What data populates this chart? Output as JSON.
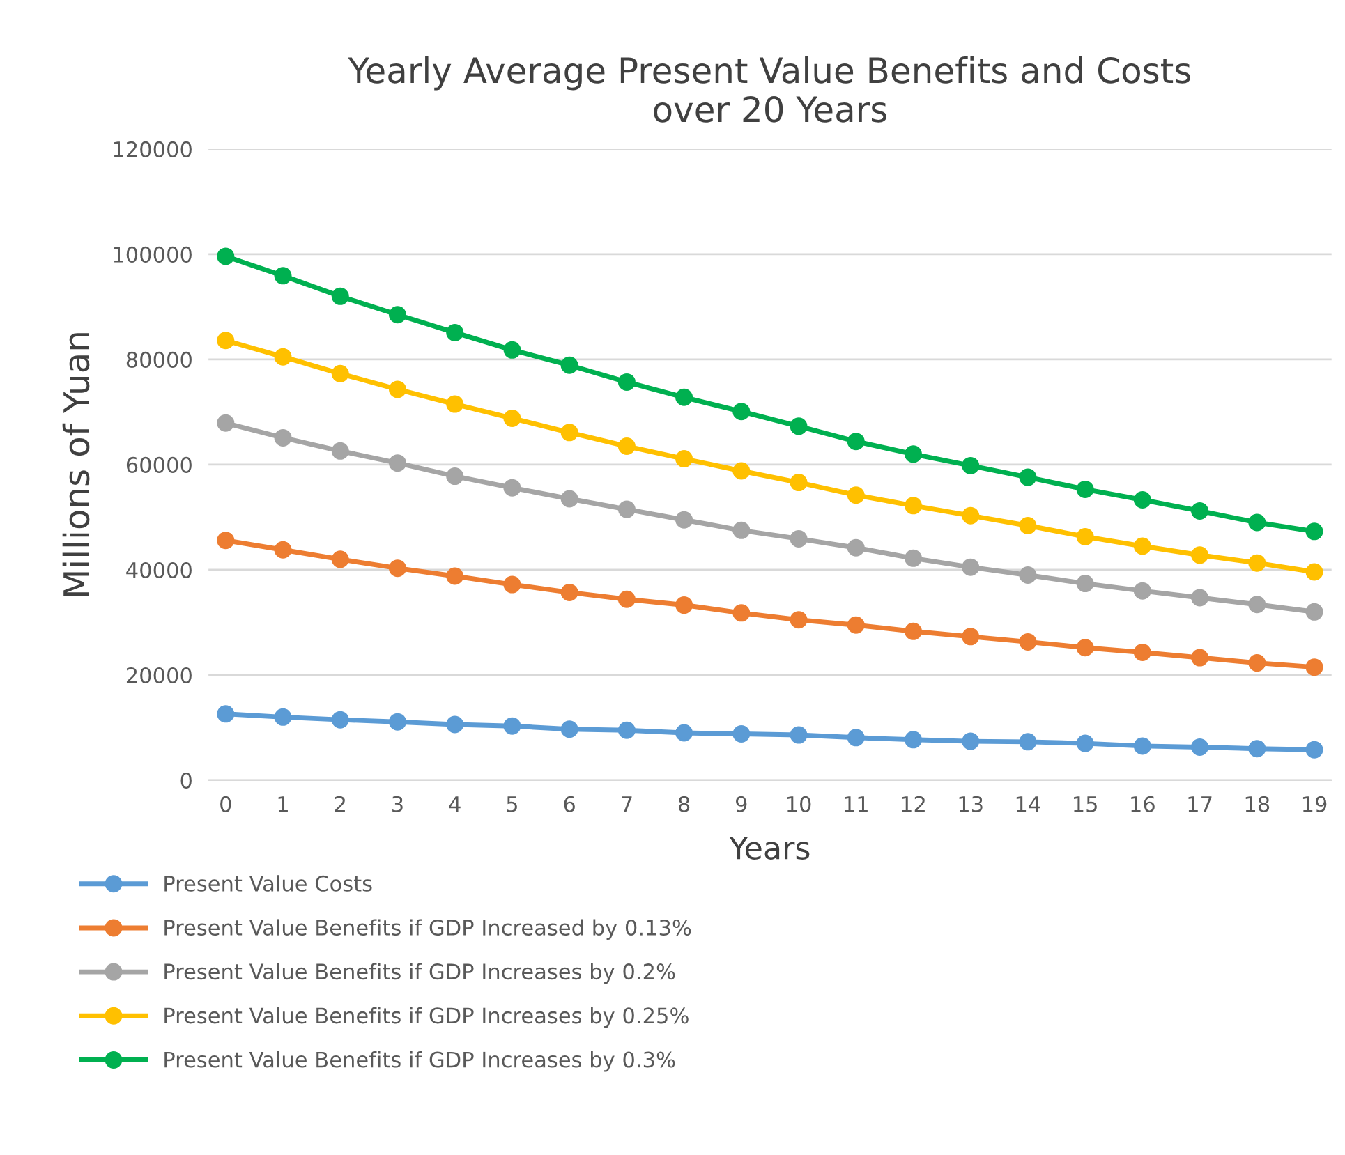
{
  "chart_data": {
    "type": "line",
    "title": "Yearly Average Present Value Benefits and Costs\nover 20 Years",
    "xlabel": "Years",
    "ylabel": "Millions of Yuan",
    "categories": [
      "0",
      "1",
      "2",
      "3",
      "4",
      "5",
      "6",
      "7",
      "8",
      "9",
      "10",
      "11",
      "12",
      "13",
      "14",
      "15",
      "16",
      "17",
      "18",
      "19"
    ],
    "series": [
      {
        "name": "Present Value Costs",
        "color": "#5b9bd5",
        "values": [
          12600,
          12000,
          11500,
          11100,
          10600,
          10300,
          9700,
          9500,
          9000,
          8800,
          8600,
          8100,
          7700,
          7400,
          7300,
          7000,
          6500,
          6300,
          6000,
          5800
        ]
      },
      {
        "name": "Present Value Benefits if GDP Increased by 0.13%",
        "color": "#ed7d31",
        "values": [
          45600,
          43800,
          42000,
          40300,
          38800,
          37200,
          35700,
          34400,
          33300,
          31800,
          30500,
          29500,
          28300,
          27300,
          26300,
          25200,
          24300,
          23300,
          22300,
          21500
        ]
      },
      {
        "name": "Present Value Benefits if GDP Increases by 0.2%",
        "color": "#a5a5a5",
        "values": [
          67900,
          65100,
          62600,
          60300,
          57800,
          55600,
          53500,
          51500,
          49500,
          47500,
          45900,
          44200,
          42200,
          40500,
          39000,
          37400,
          36000,
          34700,
          33400,
          32000
        ]
      },
      {
        "name": "Present Value Benefits if GDP Increases by 0.25%",
        "color": "#ffc000",
        "values": [
          83600,
          80500,
          77300,
          74300,
          71500,
          68800,
          66100,
          63500,
          61100,
          58800,
          56600,
          54200,
          52200,
          50300,
          48400,
          46300,
          44500,
          42800,
          41300,
          39600
        ]
      },
      {
        "name": "Present Value Benefits if GDP Increases by 0.3%",
        "color": "#00b050",
        "values": [
          99600,
          95900,
          92000,
          88500,
          85100,
          81800,
          78900,
          75700,
          72800,
          70100,
          67300,
          64400,
          62000,
          59800,
          57600,
          55300,
          53300,
          51200,
          49000,
          47300
        ]
      }
    ],
    "ylim": [
      0,
      120000
    ],
    "yticks": [
      0,
      20000,
      40000,
      60000,
      80000,
      100000,
      120000
    ],
    "grid": "y",
    "legend": "bottom left",
    "marker": "circle",
    "line_style": "solid"
  }
}
